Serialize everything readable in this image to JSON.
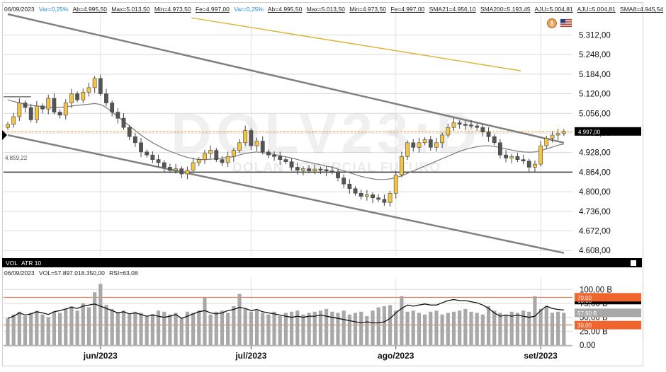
{
  "header": {
    "date": "06/09/2023",
    "var1": "Var=0,25%",
    "ab1": "Ab=4.995,50",
    "max1": "Max=5.013,50",
    "min1": "Min=4.973,50",
    "fe1": "Fe=4.997,00",
    "var2": "Var=0,25%",
    "ab2": "Ab=4.995,50",
    "max2": "Max=5.013,50",
    "min2": "Min=4.973,50",
    "fe2": "Fe=4.997,00",
    "sma21": "SMA21=4.956,10",
    "sma200": "SMA200=5.193,45",
    "aju1": "AJU=5.004,81",
    "aju2": "AJU=5.004,81",
    "sma8": "SMA8=4.945,54"
  },
  "watermark": {
    "symbol": "DOLV23:D",
    "name": "DOLAN COMERCIAL FUTURO"
  },
  "badge": {
    "coin": "$"
  },
  "left_label": "4.859,22",
  "subpanel": {
    "tabs": [
      "VOL",
      "ATR 10"
    ],
    "date": "06/09/2023",
    "vol": "VOL=57.897.018.350,00",
    "rsi": "RSI=63,08"
  },
  "colors": {
    "up": "#f5c542",
    "down": "#555555",
    "sma200": "#e0b43a",
    "channel": "#808080",
    "sma": "#7a7a7a",
    "price_tag": "#000000",
    "rsi_line": "#111111",
    "vol_bar": "#a8a8a8",
    "orange": "#f0642d",
    "grid": "#d9d9d9",
    "last_dash": "#f0a030"
  },
  "chart_data": [
    {
      "type": "candlestick",
      "x_ticks": [
        "jun/2023",
        "jul/2023",
        "ago/2023",
        "set/2023"
      ],
      "x_tick_index": [
        16,
        42,
        67,
        92
      ],
      "y_ticks": [
        5312,
        5248,
        5184,
        5120,
        5056,
        4992,
        4928,
        4864,
        4800,
        4736,
        4672,
        4608
      ],
      "y_tick_labels": [
        "5.312,00",
        "5.248,00",
        "5.184,00",
        "5.120,00",
        "5.056,00",
        "4.992,00",
        "4.928,00",
        "4.864,00",
        "4.800,00",
        "4.736,00",
        "4.672,00",
        "4.608,00"
      ],
      "ylim": [
        4590,
        5380
      ],
      "last_price": 4997,
      "last_price_label": "4.997,00",
      "horizontal_line": 4864,
      "closes": [
        5020,
        5045,
        5090,
        5075,
        5035,
        5080,
        5070,
        5105,
        5060,
        5050,
        5090,
        5120,
        5100,
        5125,
        5140,
        5170,
        5120,
        5090,
        5060,
        5040,
        5010,
        4980,
        4960,
        4930,
        4920,
        4905,
        4895,
        4880,
        4870,
        4875,
        4858,
        4870,
        4895,
        4905,
        4925,
        4935,
        4905,
        4895,
        4915,
        4935,
        4960,
        5000,
        4950,
        4965,
        4930,
        4920,
        4915,
        4905,
        4898,
        4880,
        4870,
        4875,
        4868,
        4874,
        4872,
        4868,
        4865,
        4845,
        4825,
        4810,
        4795,
        4785,
        4790,
        4780,
        4775,
        4765,
        4795,
        4855,
        4915,
        4960,
        4945,
        4960,
        4970,
        4945,
        4960,
        4985,
        5010,
        5025,
        5020,
        5018,
        5015,
        5010,
        4995,
        4980,
        4960,
        4920,
        4910,
        4915,
        4905,
        4900,
        4880,
        4890,
        4950,
        4975,
        4985,
        4990,
        4997
      ],
      "opens_offset_note": "",
      "sma200": {
        "start": 5368,
        "end": 5195
      },
      "sma21": [
        5100,
        5095,
        5090,
        5085,
        5082,
        5080,
        5078,
        5076,
        5075,
        5076,
        5077,
        5080,
        5082,
        5084,
        5086,
        5088,
        5085,
        5075,
        5060,
        5045,
        5030,
        5015,
        5000,
        4985,
        4972,
        4960,
        4950,
        4940,
        4932,
        4925,
        4918,
        4912,
        4908,
        4905,
        4905,
        4906,
        4908,
        4910,
        4912,
        4915,
        4920,
        4925,
        4928,
        4930,
        4928,
        4925,
        4922,
        4918,
        4914,
        4910,
        4905,
        4900,
        4896,
        4892,
        4888,
        4884,
        4880,
        4874,
        4868,
        4862,
        4856,
        4850,
        4846,
        4842,
        4840,
        4840,
        4842,
        4846,
        4852,
        4860,
        4868,
        4876,
        4884,
        4892,
        4900,
        4908,
        4916,
        4924,
        4932,
        4938,
        4943,
        4947,
        4950,
        4950,
        4948,
        4944,
        4940,
        4936,
        4932,
        4930,
        4929,
        4930,
        4934,
        4940,
        4946,
        4952,
        4956
      ],
      "channel_upper": [
        [
          0,
          5380
        ],
        [
          96,
          4960
        ]
      ],
      "channel_lower": [
        [
          0,
          4985
        ],
        [
          96,
          4600
        ]
      ],
      "channel_mid_flat": [
        [
          0,
          5110
        ],
        [
          4,
          5110
        ]
      ]
    },
    {
      "type": "bar",
      "y_ticks": [
        100,
        75,
        50,
        25,
        0
      ],
      "y_tick_labels": [
        "100,00 B",
        "75,00 B",
        "50,00 B",
        "25,00 B",
        "0.00"
      ],
      "ylim": [
        0,
        122
      ],
      "tags": [
        {
          "label": "63,08",
          "value": 81,
          "color": "#000000"
        },
        {
          "label": "57,90 B",
          "value": 58,
          "color": "#a8a8a8"
        },
        {
          "label": "30,00",
          "value": 36,
          "color": "#f0642d"
        },
        {
          "label": "70,00",
          "value": 86,
          "color": "#f0642d"
        }
      ],
      "volumes": [
        48,
        55,
        60,
        52,
        58,
        62,
        55,
        50,
        60,
        58,
        65,
        70,
        62,
        75,
        68,
        95,
        110,
        72,
        65,
        58,
        62,
        55,
        60,
        58,
        52,
        56,
        62,
        60,
        55,
        58,
        48,
        60,
        58,
        62,
        85,
        55,
        60,
        62,
        58,
        70,
        92,
        65,
        60,
        62,
        58,
        55,
        60,
        52,
        58,
        60,
        62,
        55,
        58,
        60,
        62,
        65,
        60,
        58,
        62,
        55,
        58,
        60,
        52,
        62,
        68,
        70,
        72,
        62,
        88,
        60,
        62,
        58,
        55,
        60,
        62,
        55,
        58,
        60,
        62,
        65,
        60,
        58,
        55,
        70,
        62,
        58,
        55,
        60,
        58,
        62,
        60,
        88,
        65,
        70,
        58,
        60,
        58
      ],
      "rsi": [
        48,
        52,
        58,
        54,
        56,
        60,
        58,
        55,
        60,
        62,
        65,
        68,
        66,
        70,
        72,
        74,
        70,
        66,
        62,
        58,
        60,
        56,
        58,
        55,
        52,
        54,
        52,
        50,
        52,
        55,
        48,
        52,
        56,
        60,
        62,
        58,
        56,
        58,
        62,
        64,
        68,
        66,
        62,
        64,
        60,
        58,
        56,
        54,
        52,
        50,
        52,
        50,
        52,
        52,
        54,
        52,
        50,
        48,
        46,
        44,
        42,
        40,
        42,
        40,
        40,
        42,
        48,
        58,
        66,
        72,
        70,
        72,
        74,
        72,
        72,
        76,
        80,
        82,
        80,
        80,
        78,
        76,
        72,
        66,
        58,
        52,
        54,
        52,
        54,
        52,
        50,
        52,
        62,
        70,
        66,
        64,
        63
      ]
    }
  ]
}
